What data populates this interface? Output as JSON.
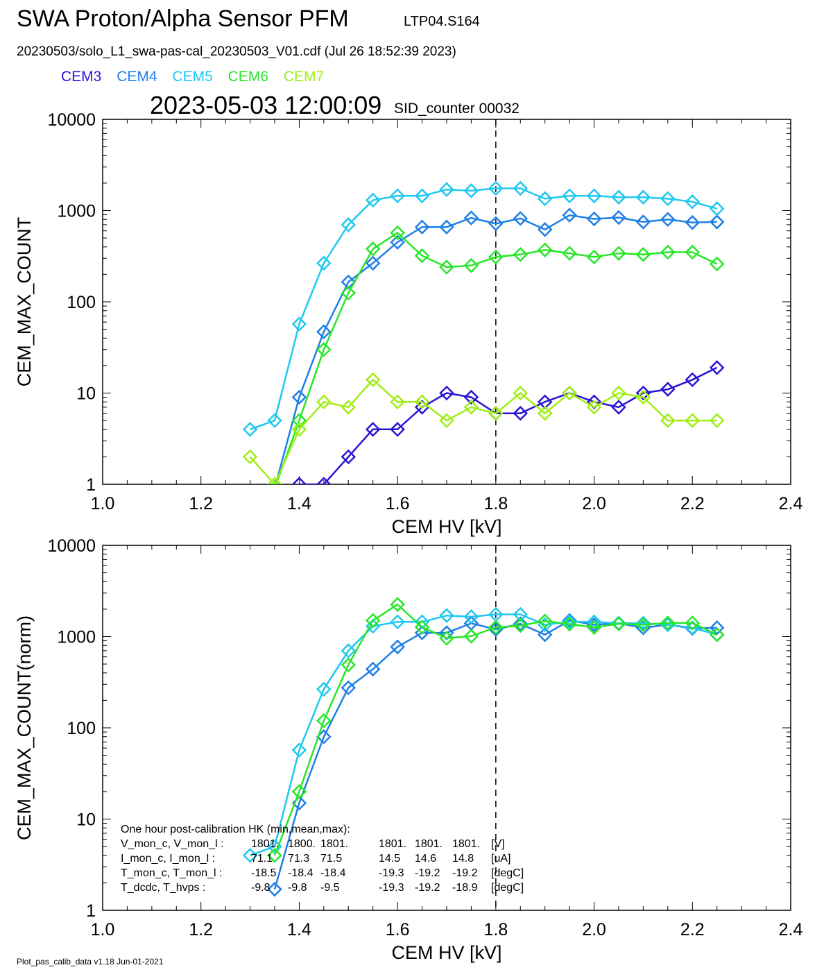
{
  "header": {
    "title": "SWA Proton/Alpha Sensor PFM",
    "title_id": "LTP04.S164",
    "filename": "20230503/solo_L1_swa-pas-cal_20230503_V01.cdf  (Jul 26 18:52:39 2023)",
    "timestamp": "2023-05-03 12:00:09",
    "sid": "SID_counter 00032"
  },
  "legend": [
    {
      "name": "CEM3",
      "color": "#2a13d6"
    },
    {
      "name": "CEM4",
      "color": "#1e7fe6"
    },
    {
      "name": "CEM5",
      "color": "#1ec8f0"
    },
    {
      "name": "CEM6",
      "color": "#28e628"
    },
    {
      "name": "CEM7",
      "color": "#a0ee14"
    }
  ],
  "footer": "Plot_pas_calib_data v1.18 Jun-01-2021",
  "chart_data": [
    {
      "type": "line",
      "xlabel": "CEM HV [kV]",
      "ylabel": "CEM_MAX_COUNT",
      "xlim": [
        1.0,
        2.4
      ],
      "ylim": [
        1,
        10000
      ],
      "yscale": "log",
      "xticks": [
        "1.0",
        "1.2",
        "1.4",
        "1.6",
        "1.8",
        "2.0",
        "2.2",
        "2.4"
      ],
      "yticks": [
        "1",
        "10",
        "100",
        "1000",
        "10000"
      ],
      "vline": 1.8,
      "marker": "diamond",
      "series": [
        {
          "name": "CEM3",
          "color": "#2a13d6",
          "x": [
            1.35,
            1.4,
            1.45,
            1.5,
            1.55,
            1.6,
            1.65,
            1.7,
            1.75,
            1.8,
            1.85,
            1.9,
            1.95,
            2.0,
            2.05,
            2.1,
            2.15,
            2.2,
            2.25
          ],
          "y": [
            0.7,
            1,
            1,
            2,
            4,
            4,
            7,
            10,
            9,
            6,
            6,
            8,
            10,
            8,
            7,
            10,
            11,
            14,
            19
          ]
        },
        {
          "name": "CEM4",
          "color": "#1e7fe6",
          "x": [
            1.35,
            1.4,
            1.45,
            1.5,
            1.55,
            1.6,
            1.65,
            1.7,
            1.75,
            1.8,
            1.85,
            1.9,
            1.95,
            2.0,
            2.05,
            2.1,
            2.15,
            2.2,
            2.25
          ],
          "y": [
            0.9,
            9,
            47,
            165,
            265,
            450,
            660,
            660,
            830,
            720,
            820,
            620,
            890,
            810,
            840,
            750,
            800,
            740,
            750
          ]
        },
        {
          "name": "CEM5",
          "color": "#1ec8f0",
          "x": [
            1.3,
            1.35,
            1.4,
            1.45,
            1.5,
            1.55,
            1.6,
            1.65,
            1.7,
            1.75,
            1.8,
            1.85,
            1.9,
            1.95,
            2.0,
            2.05,
            2.1,
            2.15,
            2.2,
            2.25
          ],
          "y": [
            4,
            5,
            57,
            265,
            700,
            1300,
            1450,
            1450,
            1700,
            1650,
            1750,
            1750,
            1350,
            1450,
            1450,
            1400,
            1400,
            1350,
            1250,
            1050
          ]
        },
        {
          "name": "CEM6",
          "color": "#28e628",
          "x": [
            1.35,
            1.4,
            1.45,
            1.5,
            1.55,
            1.6,
            1.65,
            1.7,
            1.75,
            1.8,
            1.85,
            1.9,
            1.95,
            2.0,
            2.05,
            2.1,
            2.15,
            2.2,
            2.25
          ],
          "y": [
            0.9,
            5,
            30,
            125,
            380,
            570,
            320,
            240,
            250,
            310,
            330,
            370,
            340,
            310,
            340,
            330,
            350,
            350,
            260
          ]
        },
        {
          "name": "CEM7",
          "color": "#a0ee14",
          "x": [
            1.3,
            1.35,
            1.4,
            1.45,
            1.5,
            1.55,
            1.6,
            1.65,
            1.7,
            1.75,
            1.8,
            1.85,
            1.9,
            1.95,
            2.0,
            2.05,
            2.1,
            2.15,
            2.2,
            2.25
          ],
          "y": [
            2,
            1,
            4,
            8,
            7,
            14,
            8,
            8,
            5,
            7,
            6,
            10,
            6,
            10,
            7,
            10,
            9,
            5,
            5,
            5
          ]
        }
      ]
    },
    {
      "type": "line",
      "xlabel": "CEM HV [kV]",
      "ylabel": "CEM_MAX_COUNT(norm)",
      "xlim": [
        1.0,
        2.4
      ],
      "ylim": [
        1,
        10000
      ],
      "yscale": "log",
      "xticks": [
        "1.0",
        "1.2",
        "1.4",
        "1.6",
        "1.8",
        "2.0",
        "2.2",
        "2.4"
      ],
      "yticks": [
        "1",
        "10",
        "100",
        "1000",
        "10000"
      ],
      "vline": 1.8,
      "marker": "diamond",
      "series": [
        {
          "name": "CEM4",
          "color": "#1e7fe6",
          "x": [
            1.35,
            1.4,
            1.45,
            1.5,
            1.55,
            1.6,
            1.65,
            1.7,
            1.75,
            1.8,
            1.85,
            1.9,
            1.95,
            2.0,
            2.05,
            2.1,
            2.15,
            2.2,
            2.25
          ],
          "y": [
            1.7,
            15,
            80,
            275,
            440,
            770,
            1100,
            1100,
            1400,
            1200,
            1380,
            1050,
            1500,
            1350,
            1400,
            1250,
            1350,
            1230,
            1250
          ]
        },
        {
          "name": "CEM5",
          "color": "#1ec8f0",
          "x": [
            1.3,
            1.35,
            1.4,
            1.45,
            1.5,
            1.55,
            1.6,
            1.65,
            1.7,
            1.75,
            1.8,
            1.85,
            1.9,
            1.95,
            2.0,
            2.05,
            2.1,
            2.15,
            2.2,
            2.25
          ],
          "y": [
            4,
            5,
            57,
            265,
            700,
            1300,
            1450,
            1450,
            1700,
            1650,
            1750,
            1750,
            1350,
            1450,
            1450,
            1400,
            1400,
            1350,
            1250,
            1050
          ]
        },
        {
          "name": "CEM6",
          "color": "#28e628",
          "x": [
            1.35,
            1.4,
            1.45,
            1.5,
            1.55,
            1.6,
            1.65,
            1.7,
            1.75,
            1.8,
            1.85,
            1.9,
            1.95,
            2.0,
            2.05,
            2.1,
            2.15,
            2.2,
            2.25
          ],
          "y": [
            4,
            20,
            120,
            490,
            1500,
            2250,
            1270,
            960,
            1010,
            1260,
            1320,
            1480,
            1370,
            1260,
            1380,
            1350,
            1410,
            1410,
            1050
          ]
        }
      ],
      "annotation": {
        "title": "One hour post-calibration HK (min,mean,max):",
        "rows": [
          {
            "label": "V_mon_c, V_mon_l :",
            "values": [
              "1801.",
              "1800.",
              "1801.",
              "1801.",
              "1801.",
              "1801."
            ],
            "unit": "[V]"
          },
          {
            "label": "I_mon_c,  I_mon_l :",
            "values": [
              "71.1",
              "71.3",
              "71.5",
              "14.5",
              "14.6",
              "14.8"
            ],
            "unit": "[uA]"
          },
          {
            "label": "T_mon_c, T_mon_l :",
            "values": [
              "-18.5",
              "-18.4",
              "-18.4",
              "-19.3",
              "-19.2",
              "-19.2"
            ],
            "unit": "[degC]"
          },
          {
            "label": "T_dcdc,    T_hvps :",
            "values": [
              "-9.8",
              "-9.8",
              "-9.5",
              "-19.3",
              "-19.2",
              "-18.9"
            ],
            "unit": "[degC]"
          }
        ]
      }
    }
  ]
}
